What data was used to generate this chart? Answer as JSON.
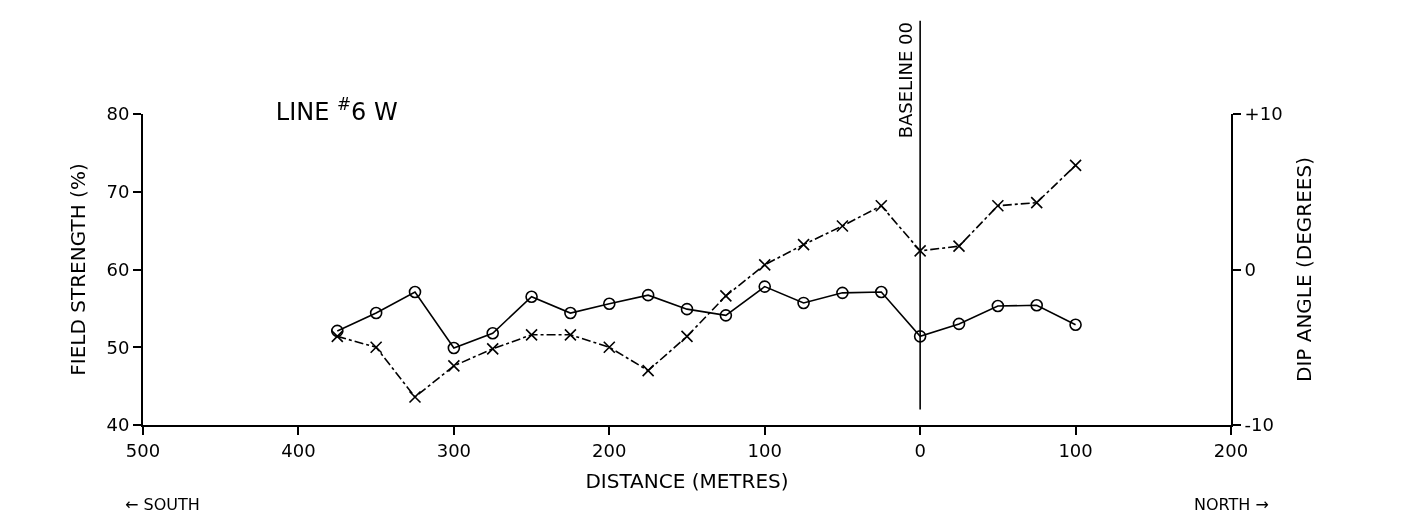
{
  "chart_data": {
    "type": "line",
    "title": "LINE $^{#}$6 W",
    "xlabel": "DISTANCE (METRES)",
    "ylabel": "FIELD STRENGTH (%)",
    "y2label": "DIP ANGLE (DEGREES)",
    "x": [
      -375,
      -350,
      -325,
      -300,
      -275,
      -250,
      -225,
      -200,
      -175,
      -150,
      -125,
      -100,
      -75,
      -50,
      -25,
      0,
      25,
      50,
      75,
      100
    ],
    "series": [
      {
        "color": "#000000",
        "marker": "circle",
        "line_style": "solid",
        "values": [
          52.1,
          54.4,
          57.1,
          49.9,
          51.8,
          56.5,
          54.4,
          55.6,
          56.7,
          54.9,
          54.1,
          57.8,
          55.7,
          57.0,
          57.1,
          51.4,
          53.0,
          55.3,
          55.4,
          52.9
        ]
      },
      {
        "color": "#000000",
        "marker": "cross",
        "line_style": "dashed",
        "axis": "y2",
        "values": [
          -4.3,
          -5.0,
          -8.2,
          -6.2,
          -5.1,
          -4.2,
          -4.2,
          -5.0,
          -6.5,
          -4.3,
          -1.7,
          0.3,
          1.6,
          2.8,
          4.1,
          1.2,
          1.5,
          4.1,
          4.3,
          6.7
        ]
      }
    ],
    "xlim": [
      -500,
      200
    ],
    "xticks": [
      {
        "value": -500,
        "label": "500"
      },
      {
        "value": -400,
        "label": "400"
      },
      {
        "value": -300,
        "label": "300"
      },
      {
        "value": -200,
        "label": "200"
      },
      {
        "value": -100,
        "label": "100"
      },
      0,
      100,
      200
    ],
    "ylim": [
      40,
      80
    ],
    "yticks": [
      40,
      50,
      60,
      70,
      80
    ],
    "y2lim": [
      -10,
      10
    ],
    "y2ticks": [
      {
        "value": -10,
        "label": "-10"
      },
      0,
      {
        "value": 10,
        "label": "+10"
      }
    ],
    "ref_lines": [
      {
        "axis": "x",
        "value": 0,
        "label": "BASELINE 00",
        "color": "#000000",
        "line_style": "solid"
      }
    ],
    "annotations": [
      "← SOUTH",
      "NORTH →"
    ]
  }
}
